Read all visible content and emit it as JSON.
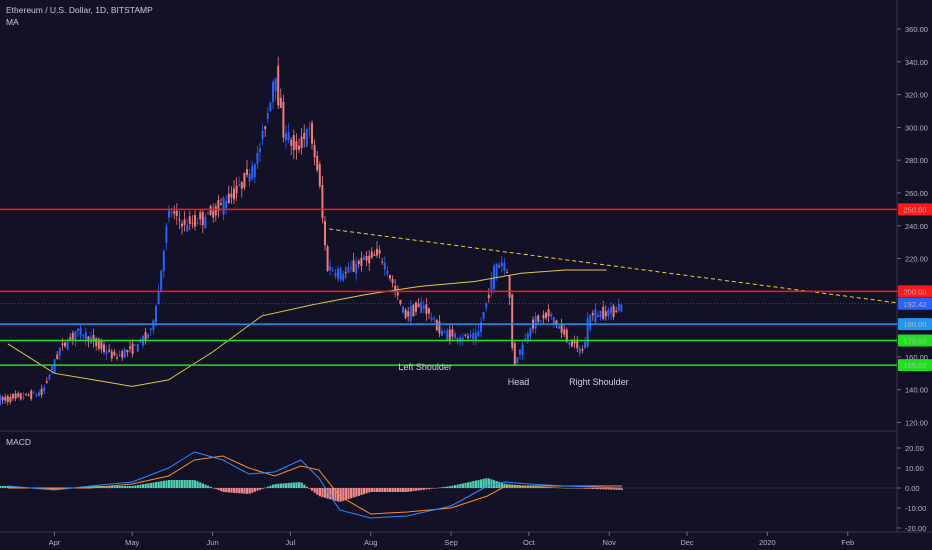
{
  "header": {
    "symbol_line": "Ethereum / U.S. Dollar, 1D, BITSTAMP",
    "indicator": "MA",
    "macd_label": "MACD"
  },
  "colors": {
    "background": "#131126",
    "up_candle": "#2962ff",
    "down_candle": "#ef7c7c",
    "ma_line": "#e3c64a",
    "resistance": "#ff1a1a",
    "support_blue": "#2196f3",
    "support_green": "#22dd22",
    "trendline": "#f0d03a",
    "macd_line": "#2a8cff",
    "signal_line": "#ff8a2a",
    "hist_pos": "#4fd0b0",
    "hist_neg": "#f08a8a"
  },
  "chart_data": [
    {
      "type": "line",
      "title": "Ethereum / U.S. Dollar, 1D, BITSTAMP",
      "series": [
        {
          "name": "",
          "x": [
            "2019-03-14",
            "2019-03-21",
            "2019-03-28",
            "2019-04-04",
            "2019-04-11",
            "2019-04-18",
            "2019-04-25",
            "2019-05-02",
            "2019-05-09",
            "2019-05-12",
            "2019-05-16",
            "2019-05-22",
            "2019-05-30",
            "2019-06-05",
            "2019-06-12",
            "2019-06-19",
            "2019-06-24",
            "2019-06-26",
            "2019-06-29",
            "2019-07-04",
            "2019-07-09",
            "2019-07-13",
            "2019-07-16",
            "2019-07-22",
            "2019-07-29",
            "2019-08-05",
            "2019-08-09",
            "2019-08-15",
            "2019-08-22",
            "2019-08-29",
            "2019-09-05",
            "2019-09-12",
            "2019-09-19",
            "2019-09-22",
            "2019-09-24",
            "2019-09-26",
            "2019-10-03",
            "2019-10-10",
            "2019-10-17",
            "2019-10-23",
            "2019-10-25",
            "2019-10-31",
            "2019-11-04",
            "2019-11-06"
          ],
          "values": [
            134,
            136,
            138,
            165,
            176,
            168,
            160,
            165,
            175,
            198,
            250,
            240,
            245,
            252,
            263,
            280,
            315,
            335,
            300,
            285,
            300,
            270,
            215,
            210,
            218,
            223,
            210,
            185,
            192,
            175,
            172,
            172,
            215,
            218,
            210,
            155,
            180,
            186,
            170,
            163,
            185,
            187,
            188,
            192
          ]
        },
        {
          "name": "",
          "x": [
            "2019-03-14",
            "2019-04-01",
            "2019-04-20",
            "2019-05-01",
            "2019-05-15",
            "2019-06-01",
            "2019-06-20",
            "2019-07-10",
            "2019-07-30",
            "2019-08-20",
            "2019-09-10",
            "2019-09-28",
            "2019-10-15",
            "2019-10-31"
          ],
          "values": [
            168,
            150,
            145,
            142,
            146,
            163,
            185,
            192,
            198,
            203,
            206,
            211,
            213,
            213
          ]
        }
      ],
      "horizontal_levels": [
        {
          "label": "250.00",
          "value": 250,
          "color": "#ff1a1a"
        },
        {
          "label": "200.00",
          "value": 200,
          "color": "#ff1a1a"
        },
        {
          "label": "192.42",
          "value": 192.42,
          "color": "#2962ff"
        },
        {
          "label": "180.00",
          "value": 180,
          "color": "#2196f3"
        },
        {
          "label": "170.00",
          "value": 170,
          "color": "#22dd22"
        },
        {
          "label": "155.00",
          "value": 155,
          "color": "#22dd22"
        }
      ],
      "annotations": [
        "Left Shoulder",
        "Head",
        "Right Shoulder"
      ],
      "xlabel": "",
      "ylabel": "",
      "ylim": [
        115,
        368
      ],
      "y_ticks": [
        120,
        140,
        160,
        180,
        200,
        220,
        240,
        260,
        280,
        300,
        320,
        340,
        360
      ],
      "y_tick_labels": [
        "120.00",
        "140.00",
        "160.00",
        "180.00",
        "200.00",
        "220.00",
        "240.00",
        "260.00",
        "280.00",
        "300.00",
        "320.00",
        "340.00",
        "360.00"
      ],
      "x_tick_labels": [
        "Apr",
        "May",
        "Jun",
        "Jul",
        "Aug",
        "Sep",
        "Oct",
        "Nov",
        "Dec",
        "2020",
        "Feb"
      ]
    },
    {
      "type": "line",
      "title": "MACD",
      "series": [
        {
          "name": "",
          "x": [
            "2019-03-14",
            "2019-04-01",
            "2019-04-15",
            "2019-05-01",
            "2019-05-15",
            "2019-05-25",
            "2019-06-05",
            "2019-06-15",
            "2019-06-25",
            "2019-07-05",
            "2019-07-12",
            "2019-07-20",
            "2019-08-01",
            "2019-08-15",
            "2019-09-01",
            "2019-09-15",
            "2019-09-22",
            "2019-10-01",
            "2019-10-15",
            "2019-11-06"
          ],
          "values": [
            1,
            -1,
            1,
            3,
            10,
            18,
            14,
            7,
            8,
            14,
            5,
            -11,
            -15,
            -14,
            -9,
            1,
            3,
            2,
            1,
            0
          ]
        },
        {
          "name": "",
          "x": [
            "2019-03-14",
            "2019-04-01",
            "2019-04-15",
            "2019-05-01",
            "2019-05-15",
            "2019-05-25",
            "2019-06-05",
            "2019-06-15",
            "2019-06-25",
            "2019-07-05",
            "2019-07-12",
            "2019-07-20",
            "2019-08-01",
            "2019-08-15",
            "2019-09-01",
            "2019-09-15",
            "2019-09-22",
            "2019-10-01",
            "2019-10-15",
            "2019-11-06"
          ],
          "values": [
            0,
            0,
            0,
            2,
            6,
            14,
            16,
            10,
            6,
            11,
            9,
            -4,
            -13,
            -12,
            -10,
            -4,
            1,
            1,
            1,
            1
          ]
        }
      ],
      "ylim": [
        -22,
        24
      ],
      "y_ticks": [
        20,
        10,
        0,
        -10,
        -20
      ],
      "y_tick_labels": [
        "20.00",
        "10.00",
        "0.00",
        "-10.00",
        "-20.00"
      ],
      "x_tick_labels": [
        "Apr",
        "May",
        "Jun",
        "Jul",
        "Aug",
        "Sep",
        "Oct",
        "Nov",
        "Dec",
        "2020",
        "Feb"
      ]
    }
  ]
}
